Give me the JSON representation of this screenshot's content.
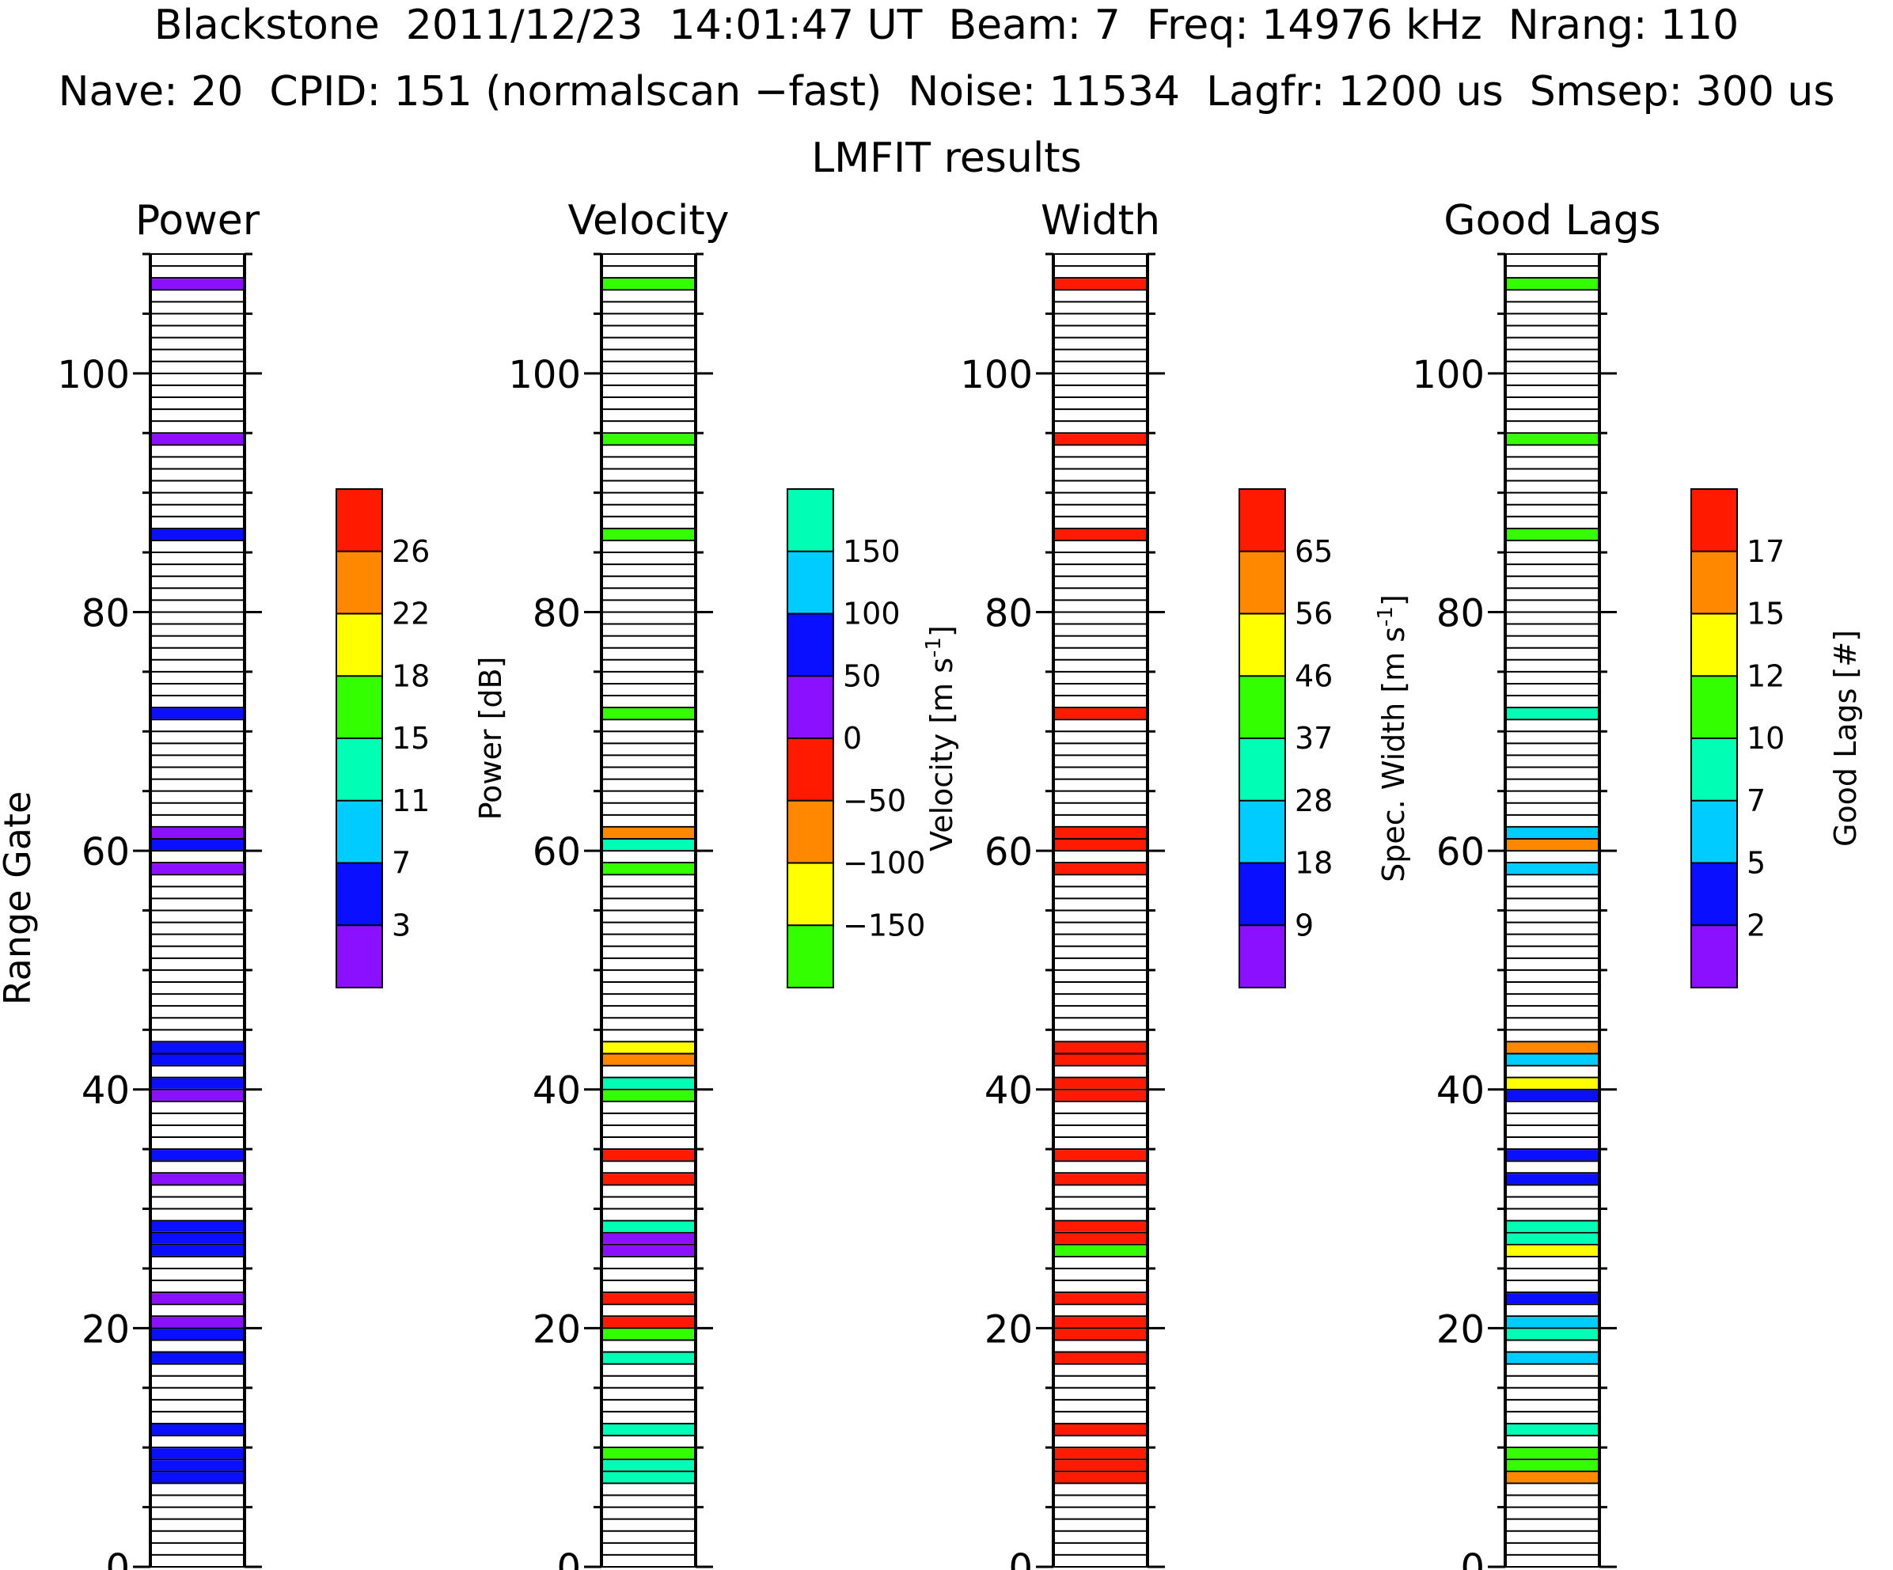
{
  "header": {
    "line1": "Blackstone  2011/12/23  14:01:47 UT  Beam: 7  Freq: 14976 kHz  Nrang: 110",
    "line2": "Nave: 20  CPID: 151 (normalscan −fast)  Noise: 11534  Lagfr: 1200 us  Smsep: 300 us",
    "line3": "LMFIT results"
  },
  "colors": {
    "purple": "#8a10ff",
    "blue": "#0a10ff",
    "cyan": "#00ccff",
    "teal": "#00ffb4",
    "green": "#33ff00",
    "yellow": "#ffff00",
    "orange": "#ff8800",
    "red": "#ff1a00"
  },
  "chart_data": [
    {
      "type": "heatmap",
      "title": "Power",
      "ylabel": "Range Gate",
      "ylim": [
        0,
        110
      ],
      "yticks": [
        "0",
        "20",
        "40",
        "60",
        "80",
        "100"
      ],
      "gates": [
        7,
        8,
        9,
        11,
        17,
        19,
        20,
        22,
        26,
        27,
        28,
        32,
        34,
        39,
        40,
        42,
        43,
        58,
        60,
        61,
        71,
        86,
        94,
        107
      ],
      "values": [
        "blue",
        "blue",
        "blue",
        "blue",
        "blue",
        "blue",
        "purple",
        "purple",
        "blue",
        "blue",
        "blue",
        "purple",
        "blue",
        "purple",
        "blue",
        "blue",
        "blue",
        "purple",
        "blue",
        "purple",
        "blue",
        "blue",
        "purple",
        "purple"
      ],
      "colorbar": {
        "label": "Power [dB]",
        "colors": [
          "purple",
          "blue",
          "cyan",
          "teal",
          "green",
          "yellow",
          "orange",
          "red"
        ],
        "ticks": [
          "3",
          "7",
          "11",
          "15",
          "18",
          "22",
          "26"
        ]
      }
    },
    {
      "type": "heatmap",
      "title": "Velocity",
      "ylabel": "",
      "ylim": [
        0,
        110
      ],
      "yticks": [
        "0",
        "20",
        "40",
        "60",
        "80",
        "100"
      ],
      "gates": [
        7,
        8,
        9,
        11,
        17,
        19,
        20,
        22,
        26,
        27,
        28,
        32,
        34,
        39,
        40,
        42,
        43,
        58,
        60,
        61,
        71,
        86,
        94,
        107
      ],
      "values": [
        "teal",
        "teal",
        "green",
        "teal",
        "teal",
        "green",
        "red",
        "red",
        "purple",
        "purple",
        "teal",
        "red",
        "red",
        "green",
        "teal",
        "orange",
        "yellow",
        "green",
        "teal",
        "orange",
        "green",
        "green",
        "green",
        "green"
      ],
      "colorbar": {
        "label": "Velocity [m s",
        "label_sup": "-1",
        "label_end": "]",
        "colors": [
          "green",
          "yellow",
          "orange",
          "red",
          "purple",
          "blue",
          "cyan",
          "teal"
        ],
        "ticks": [
          "−150",
          "−100",
          "−50",
          "0",
          "50",
          "100",
          "150"
        ]
      }
    },
    {
      "type": "heatmap",
      "title": "Width",
      "ylabel": "",
      "ylim": [
        0,
        110
      ],
      "yticks": [
        "0",
        "20",
        "40",
        "60",
        "80",
        "100"
      ],
      "gates": [
        7,
        8,
        9,
        11,
        17,
        19,
        20,
        22,
        26,
        27,
        28,
        32,
        34,
        39,
        40,
        42,
        43,
        58,
        60,
        61,
        71,
        86,
        94,
        107
      ],
      "values": [
        "red",
        "red",
        "red",
        "red",
        "red",
        "red",
        "red",
        "red",
        "green",
        "red",
        "red",
        "red",
        "red",
        "red",
        "red",
        "red",
        "red",
        "red",
        "red",
        "red",
        "red",
        "red",
        "red",
        "red"
      ],
      "colorbar": {
        "label": "Spec. Width [m s",
        "label_sup": "-1",
        "label_end": "]",
        "colors": [
          "purple",
          "blue",
          "cyan",
          "teal",
          "green",
          "yellow",
          "orange",
          "red"
        ],
        "ticks": [
          "9",
          "18",
          "28",
          "37",
          "46",
          "56",
          "65"
        ]
      }
    },
    {
      "type": "heatmap",
      "title": "Good Lags",
      "ylabel": "",
      "ylim": [
        0,
        110
      ],
      "yticks": [
        "0",
        "20",
        "40",
        "60",
        "80",
        "100"
      ],
      "gates": [
        7,
        8,
        9,
        11,
        17,
        19,
        20,
        22,
        26,
        27,
        28,
        32,
        34,
        39,
        40,
        42,
        43,
        58,
        60,
        61,
        71,
        86,
        94,
        107
      ],
      "values": [
        "orange",
        "green",
        "green",
        "teal",
        "cyan",
        "teal",
        "cyan",
        "blue",
        "yellow",
        "teal",
        "teal",
        "blue",
        "blue",
        "blue",
        "yellow",
        "cyan",
        "orange",
        "cyan",
        "orange",
        "cyan",
        "teal",
        "green",
        "green",
        "green"
      ],
      "colorbar": {
        "label": "Good Lags [#]",
        "colors": [
          "purple",
          "blue",
          "cyan",
          "teal",
          "green",
          "yellow",
          "orange",
          "red"
        ],
        "ticks": [
          "2",
          "5",
          "7",
          "10",
          "12",
          "15",
          "17"
        ]
      }
    }
  ]
}
